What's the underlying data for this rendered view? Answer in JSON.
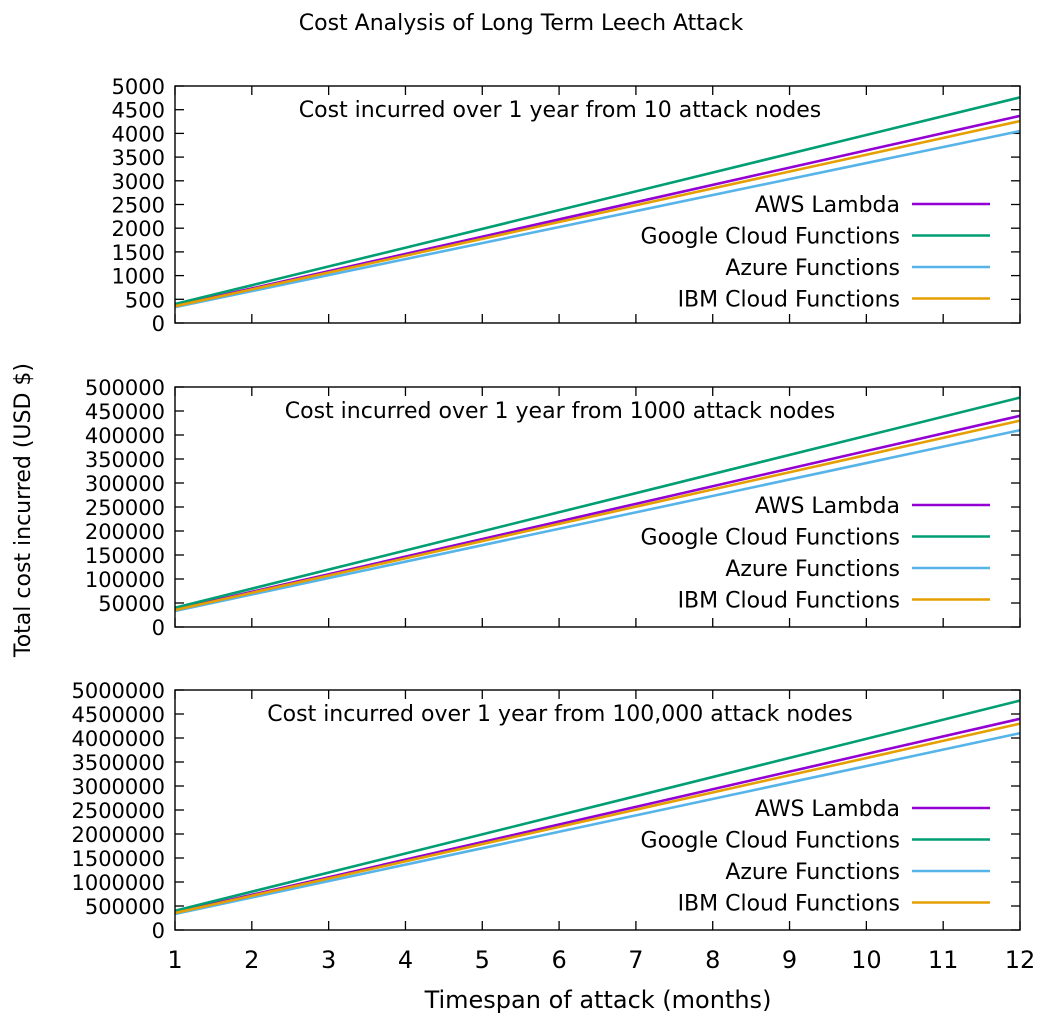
{
  "figure": {
    "title": "Cost Analysis of Long Term Leech Attack",
    "xlabel": "Timespan of attack (months)",
    "ylabel": "Total cost incurred (USD $)"
  },
  "colors": {
    "AWS Lambda": "#9400d3",
    "Google Cloud Functions": "#009e73",
    "Azure Functions": "#56b4e9",
    "IBM Cloud Functions": "#e69f00"
  },
  "chart_data": [
    {
      "type": "line",
      "annotation": "Cost incurred over 1 year from 10 attack nodes",
      "x": [
        1,
        12
      ],
      "xlim": [
        1,
        12
      ],
      "ylim": [
        0,
        5000
      ],
      "yticks": [
        0,
        500,
        1000,
        1500,
        2000,
        2500,
        3000,
        3500,
        4000,
        4500,
        5000
      ],
      "xtick_labels_shown": false,
      "legend_position": "right",
      "series": [
        {
          "name": "AWS Lambda",
          "values": [
            365,
            4370
          ]
        },
        {
          "name": "Google Cloud Functions",
          "values": [
            400,
            4760
          ]
        },
        {
          "name": "Azure Functions",
          "values": [
            335,
            4050
          ]
        },
        {
          "name": "IBM Cloud Functions",
          "values": [
            355,
            4260
          ]
        }
      ]
    },
    {
      "type": "line",
      "annotation": "Cost incurred over 1 year from 1000 attack nodes",
      "x": [
        1,
        12
      ],
      "xlim": [
        1,
        12
      ],
      "ylim": [
        0,
        500000
      ],
      "yticks": [
        0,
        50000,
        100000,
        150000,
        200000,
        250000,
        300000,
        350000,
        400000,
        450000,
        500000
      ],
      "xtick_labels_shown": false,
      "legend_position": "right",
      "series": [
        {
          "name": "AWS Lambda",
          "values": [
            36500,
            440000
          ]
        },
        {
          "name": "Google Cloud Functions",
          "values": [
            40000,
            478000
          ]
        },
        {
          "name": "Azure Functions",
          "values": [
            33500,
            410000
          ]
        },
        {
          "name": "IBM Cloud Functions",
          "values": [
            35500,
            430000
          ]
        }
      ]
    },
    {
      "type": "line",
      "annotation": "Cost incurred over 1 year from 100,000 attack nodes",
      "x": [
        1,
        12
      ],
      "xlim": [
        1,
        12
      ],
      "ylim": [
        0,
        5000000
      ],
      "yticks": [
        0,
        500000,
        1000000,
        1500000,
        2000000,
        2500000,
        3000000,
        3500000,
        4000000,
        4500000,
        5000000
      ],
      "xticks": [
        1,
        2,
        3,
        4,
        5,
        6,
        7,
        8,
        9,
        10,
        11,
        12
      ],
      "xtick_labels_shown": true,
      "legend_position": "right",
      "series": [
        {
          "name": "AWS Lambda",
          "values": [
            365000,
            4400000
          ]
        },
        {
          "name": "Google Cloud Functions",
          "values": [
            400000,
            4780000
          ]
        },
        {
          "name": "Azure Functions",
          "values": [
            335000,
            4100000
          ]
        },
        {
          "name": "IBM Cloud Functions",
          "values": [
            355000,
            4300000
          ]
        }
      ]
    }
  ]
}
